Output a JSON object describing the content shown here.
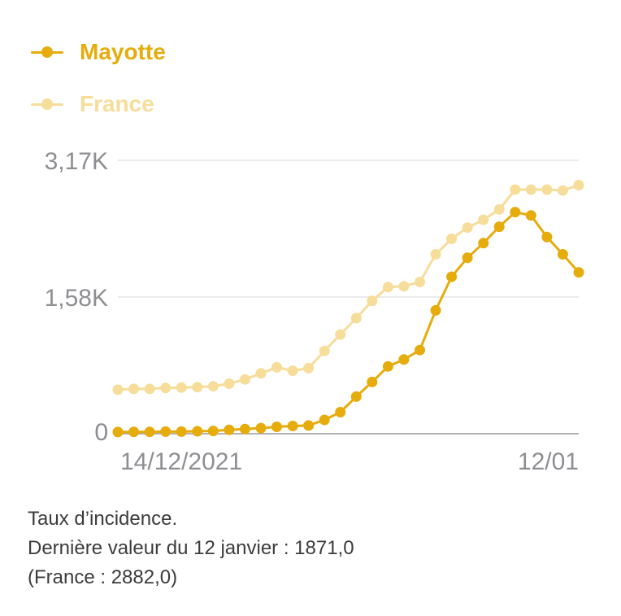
{
  "chart_data": {
    "type": "line",
    "xlim": [
      "2021-12-14",
      "2022-01-12"
    ],
    "x_tick_labels": [
      "14/12/2021",
      "12/01"
    ],
    "ylim": [
      0,
      3170
    ],
    "y_ticks": [
      0,
      1585,
      3170
    ],
    "y_tick_labels": [
      "0",
      "1,58K",
      "3,17K"
    ],
    "grid": true,
    "legend_position": "top-left",
    "series": [
      {
        "name": "Mayotte",
        "color": "#e6ac0c",
        "values": [
          20,
          22,
          22,
          25,
          25,
          28,
          32,
          45,
          55,
          65,
          80,
          90,
          95,
          160,
          250,
          430,
          600,
          780,
          860,
          970,
          1430,
          1820,
          2040,
          2210,
          2400,
          2570,
          2530,
          2280,
          2080,
          1871
        ]
      },
      {
        "name": "France",
        "color": "#f7dd9a",
        "values": [
          510,
          520,
          520,
          530,
          535,
          540,
          550,
          580,
          630,
          700,
          770,
          730,
          760,
          960,
          1150,
          1340,
          1540,
          1700,
          1710,
          1760,
          2080,
          2260,
          2390,
          2480,
          2600,
          2830,
          2830,
          2830,
          2820,
          2882
        ]
      }
    ]
  },
  "caption": {
    "line1": "Taux d’incidence.",
    "line2": "Dernière valeur du 12 janvier : 1871,0",
    "line3": "(France : 2882,0)"
  }
}
